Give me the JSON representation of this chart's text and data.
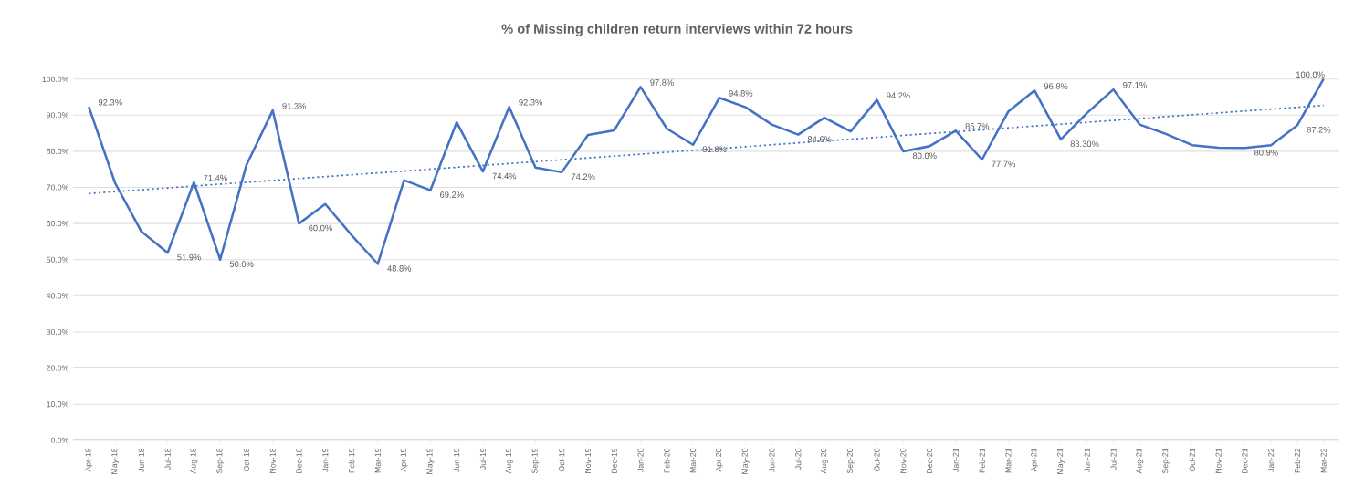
{
  "chart_data": {
    "type": "line",
    "title": "% of Missing children return interviews within 72 hours",
    "categories": [
      "Apr-18",
      "May-18",
      "Jun-18",
      "Jul-18",
      "Aug-18",
      "Sep-18",
      "Oct-18",
      "Nov-18",
      "Dec-18",
      "Jan-19",
      "Feb-19",
      "Mar-19",
      "Apr-19",
      "May-19",
      "Jun-19",
      "Jul-19",
      "Aug-19",
      "Sep-19",
      "Oct-19",
      "Nov-19",
      "Dec-19",
      "Jan-20",
      "Feb-20",
      "Mar-20",
      "Apr-20",
      "May-20",
      "Jun-20",
      "Jul-20",
      "Aug-20",
      "Sep-20",
      "Oct-20",
      "Nov-20",
      "Dec-20",
      "Jan-21",
      "Feb-21",
      "Mar-21",
      "Apr-21",
      "May-21",
      "Jun-21",
      "Jul-21",
      "Aug-21",
      "Sep-21",
      "Oct-21",
      "Nov-21",
      "Dec-21",
      "Jan-22",
      "Feb-22",
      "Mar-22"
    ],
    "series": [
      {
        "color": "#4472c4",
        "line_style": "solid",
        "values": [
          92.3,
          71.2,
          57.8,
          51.9,
          71.4,
          50.0,
          76.2,
          91.3,
          60.0,
          65.4,
          56.8,
          48.8,
          72.0,
          69.2,
          88.0,
          74.4,
          92.3,
          75.5,
          74.2,
          84.5,
          85.8,
          97.8,
          86.3,
          81.8,
          94.8,
          92.2,
          87.4,
          84.6,
          89.3,
          85.5,
          94.2,
          80.0,
          81.4,
          85.7,
          77.7,
          91.0,
          96.8,
          83.3,
          90.6,
          97.1,
          87.4,
          84.8,
          81.7,
          81.0,
          80.9,
          81.7,
          87.2,
          100.0
        ],
        "value_labels": [
          "92.3%",
          null,
          null,
          "51.9%",
          "71.4%",
          "50.0%",
          null,
          "91.3%",
          "60.0%",
          null,
          null,
          "48.8%",
          null,
          "69.2%",
          null,
          "74.4%",
          "92.3%",
          null,
          "74.2%",
          null,
          null,
          "97.8%",
          null,
          "81.8%",
          "94.8%",
          null,
          null,
          "84.6%",
          null,
          null,
          "94.2%",
          "80.0%",
          null,
          "85.7%",
          "77.7%",
          null,
          "96.8%",
          "83.30%",
          null,
          "97.1%",
          null,
          null,
          null,
          null,
          "80.9%",
          null,
          "87.2%",
          "100.0%"
        ]
      },
      {
        "type": "line",
        "color": "#4472c4",
        "line_style": "dotted",
        "x": [
          "Apr-18",
          "Mar-22"
        ],
        "values": [
          68.3,
          92.7
        ]
      }
    ],
    "ylim": [
      0,
      100
    ],
    "yticks": [
      {
        "value": 0,
        "label": "0.0%"
      },
      {
        "value": 10,
        "label": "10.0%"
      },
      {
        "value": 20,
        "label": "20.0%"
      },
      {
        "value": 30,
        "label": "30.0%"
      },
      {
        "value": 40,
        "label": "40.0%"
      },
      {
        "value": 50,
        "label": "50.0%"
      },
      {
        "value": 60,
        "label": "60.0%"
      },
      {
        "value": 70,
        "label": "70.0%"
      },
      {
        "value": 80,
        "label": "80.0%"
      },
      {
        "value": 90,
        "label": "90.0%"
      },
      {
        "value": 100,
        "label": "100.0%"
      }
    ],
    "grid": "y",
    "marker": "none"
  }
}
